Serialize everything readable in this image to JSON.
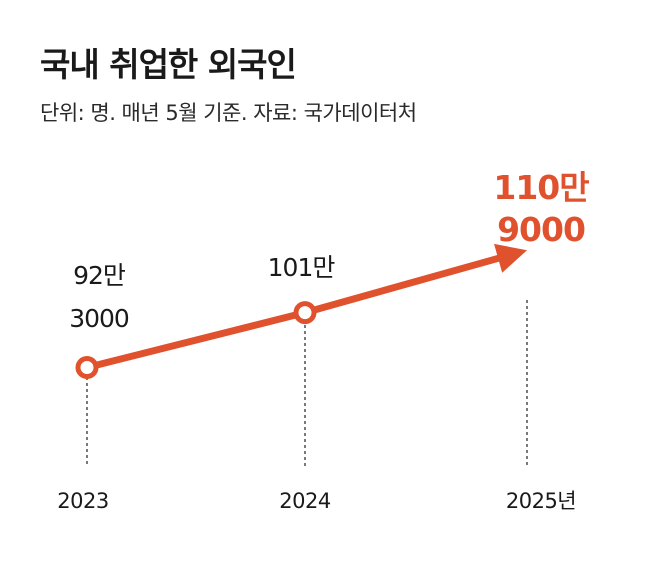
{
  "chart_data": {
    "type": "line",
    "title": "국내 취업한 외국인",
    "subtitle": "단위: 명. 매년 5월 기준. 자료: 국가데이터처",
    "x": [
      "2023",
      "2024",
      "2025"
    ],
    "x_tick_labels": [
      "2023",
      "2024",
      "2025년"
    ],
    "values": [
      923000,
      1010000,
      1109000
    ],
    "point_labels": [
      [
        "92만",
        "3000"
      ],
      [
        "101만"
      ],
      [
        "110만",
        "9000"
      ]
    ],
    "ylim": [
      900000,
      1130000
    ],
    "grid": false,
    "legend": "none"
  },
  "colors": {
    "line": "#e0522d",
    "highlight_text": "#e0522d",
    "text": "#1a1a1a",
    "guide": "#333333",
    "marker_fill": "#ffffff"
  }
}
